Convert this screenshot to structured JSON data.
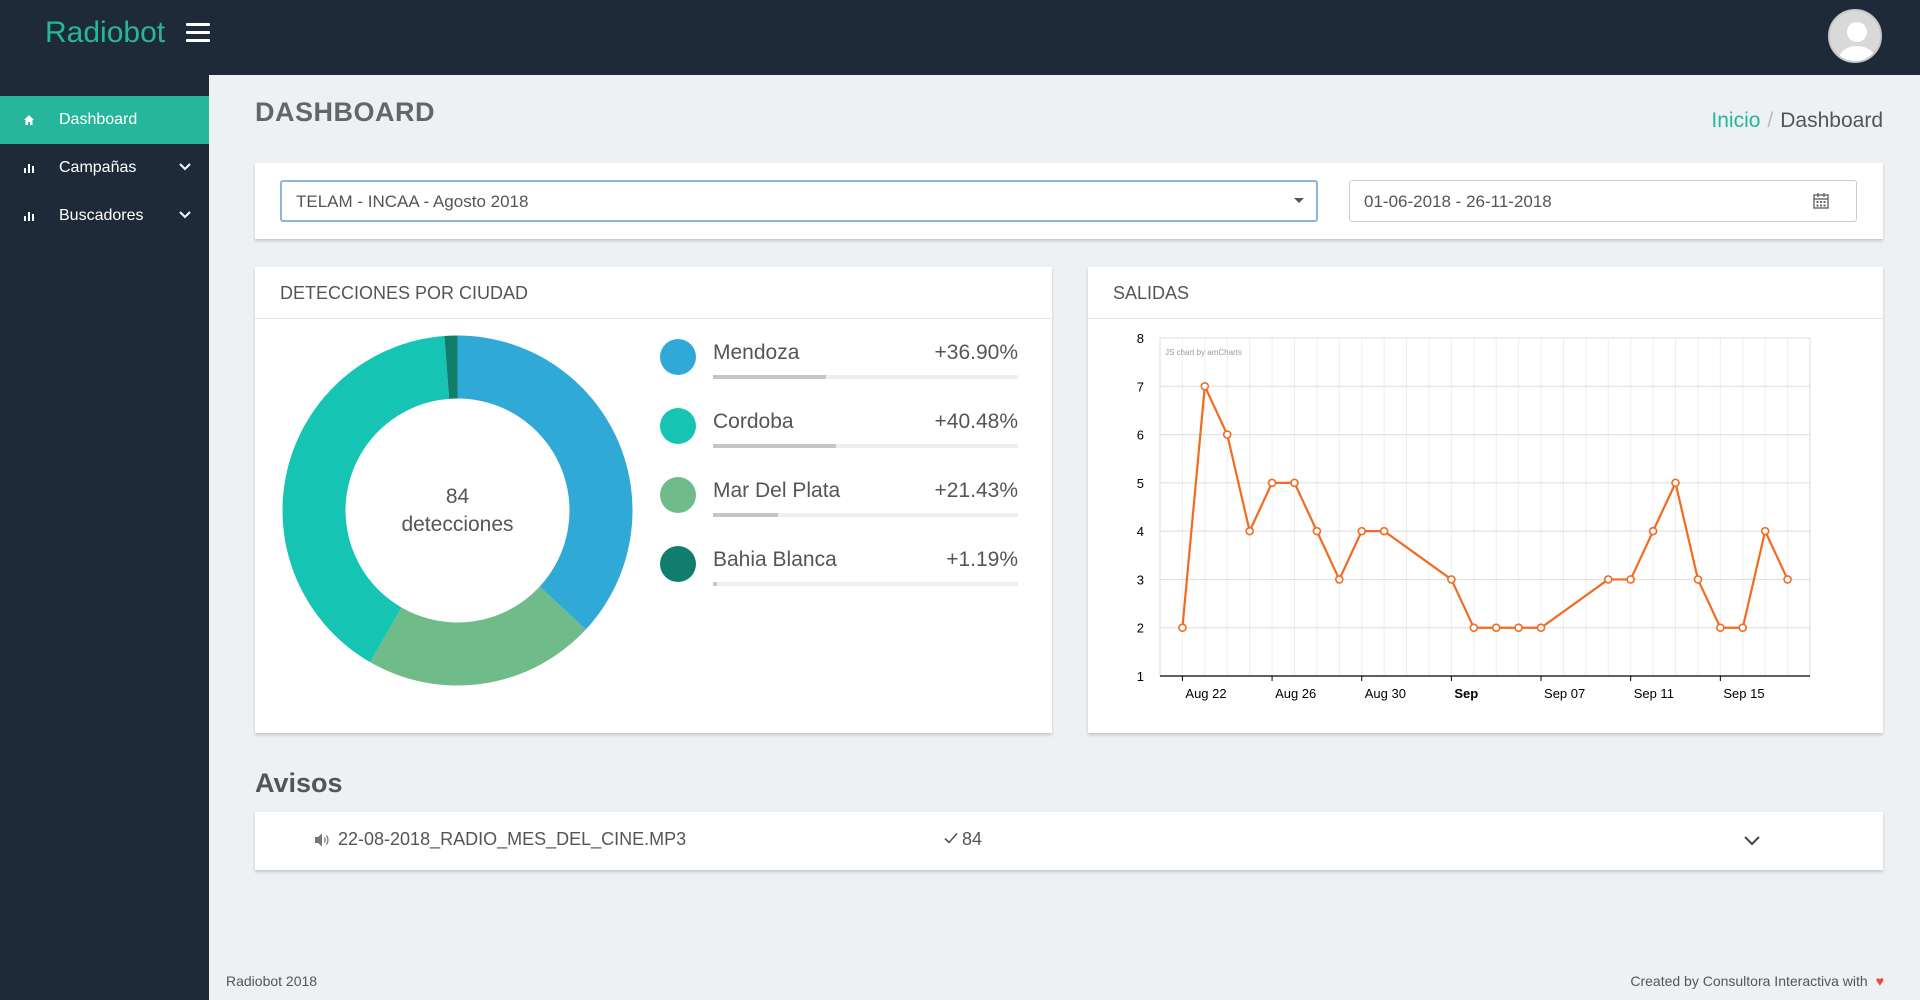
{
  "app": {
    "brand": "Radiobot"
  },
  "sidebar": {
    "items": [
      {
        "label": "Dashboard",
        "icon": "home-icon",
        "active": true
      },
      {
        "label": "Campañas",
        "icon": "bar-chart-icon",
        "expandable": true
      },
      {
        "label": "Buscadores",
        "icon": "bar-chart-icon",
        "expandable": true
      }
    ]
  },
  "header": {
    "title": "DASHBOARD",
    "breadcrumb": {
      "home": "Inicio",
      "current": "Dashboard"
    }
  },
  "filters": {
    "campaign": "TELAM - INCAA - Agosto 2018",
    "date_range": "01-06-2018 - 26-11-2018"
  },
  "detecciones": {
    "title": "DETECCIONES POR CIUDAD",
    "total_value": "84",
    "total_label": "detecciones",
    "cities": [
      {
        "name": "Mendoza",
        "pct_label": "+36.90%",
        "pct": 36.9,
        "color": "#31a9d6"
      },
      {
        "name": "Cordoba",
        "pct_label": "+40.48%",
        "pct": 40.48,
        "color": "#15c4b2"
      },
      {
        "name": "Mar Del Plata",
        "pct_label": "+21.43%",
        "pct": 21.43,
        "color": "#6fbb8a"
      },
      {
        "name": "Bahia Blanca",
        "pct_label": "+1.19%",
        "pct": 1.19,
        "color": "#107d6d"
      }
    ]
  },
  "salidas": {
    "title": "SALIDAS",
    "credit": "JS chart by amCharts"
  },
  "chart_data": {
    "type": "line",
    "title": "SALIDAS",
    "x": [
      "2018-08-22",
      "2018-08-23",
      "2018-08-24",
      "2018-08-25",
      "2018-08-26",
      "2018-08-27",
      "2018-08-28",
      "2018-08-29",
      "2018-08-30",
      "2018-08-31",
      "2018-09-03",
      "2018-09-04",
      "2018-09-05",
      "2018-09-06",
      "2018-09-07",
      "2018-09-10",
      "2018-09-11",
      "2018-09-12",
      "2018-09-13",
      "2018-09-14",
      "2018-09-15",
      "2018-09-16",
      "2018-09-17",
      "2018-09-18"
    ],
    "values": [
      2,
      7,
      6,
      4,
      5,
      5,
      4,
      3,
      4,
      4,
      3,
      2,
      2,
      2,
      2,
      3,
      3,
      4,
      5,
      3,
      2,
      2,
      4,
      3
    ],
    "ylim": [
      1,
      8
    ],
    "y_ticks": [
      1,
      2,
      3,
      4,
      5,
      6,
      7,
      8
    ],
    "x_ticks": [
      {
        "label": "Aug 22",
        "date": "2018-08-22",
        "bold": false
      },
      {
        "label": "Aug 26",
        "date": "2018-08-26",
        "bold": false
      },
      {
        "label": "Aug 30",
        "date": "2018-08-30",
        "bold": false
      },
      {
        "label": "Sep",
        "date": "2018-09-03",
        "bold": true
      },
      {
        "label": "Sep 07",
        "date": "2018-09-07",
        "bold": false
      },
      {
        "label": "Sep 11",
        "date": "2018-09-11",
        "bold": false
      },
      {
        "label": "Sep 15",
        "date": "2018-09-15",
        "bold": false
      }
    ],
    "x_range": [
      "2018-08-21",
      "2018-09-19"
    ],
    "color": "#f26b21",
    "grid": true
  },
  "avisos": {
    "title": "Avisos",
    "items": [
      {
        "file": "22-08-2018_RADIO_MES_DEL_CINE.MP3",
        "count": "84"
      }
    ]
  },
  "footer": {
    "left": "Radiobot 2018",
    "right": "Created by Consultora Interactiva with",
    "heart": "♥"
  }
}
